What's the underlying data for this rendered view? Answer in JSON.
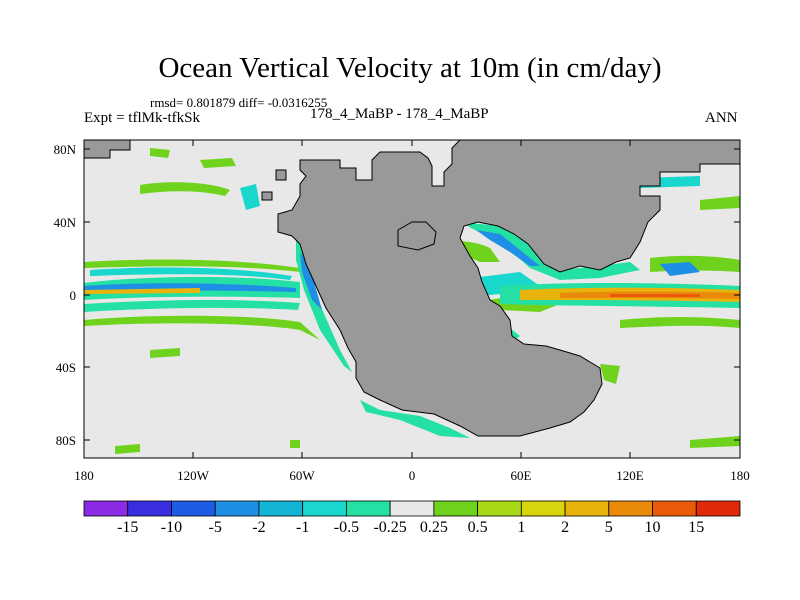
{
  "title": "Ocean Vertical Velocity at 10m (in cm/day)",
  "stats": "rmsd= 0.801879 diff= -0.0316255",
  "left_label": "Expt = tflMk-tfkSk",
  "center_label": "178_4_MaBP - 178_4_MaBP",
  "right_label": "ANN",
  "y_ticks": [
    "80N",
    "40N",
    "0",
    "40S",
    "80S"
  ],
  "x_ticks": [
    "180",
    "120W",
    "60W",
    "0",
    "60E",
    "120E",
    "180"
  ],
  "colorbar": {
    "labels": [
      "-15",
      "-10",
      "-5",
      "-2",
      "-1",
      "-0.5",
      "-0.25",
      "0.25",
      "0.5",
      "1",
      "2",
      "5",
      "10",
      "15"
    ],
    "colors": [
      "#8c2be6",
      "#3a2fe0",
      "#1e5ce6",
      "#1f8fe6",
      "#14b4d4",
      "#19d7cc",
      "#25e0a5",
      "#e8e8e8",
      "#6fd31e",
      "#a8d816",
      "#d8d40e",
      "#e8b30a",
      "#ea8a0a",
      "#ea5a0a",
      "#e02a0a"
    ]
  },
  "land_color": "#999999",
  "ocean_color": "#e8e8e8"
}
